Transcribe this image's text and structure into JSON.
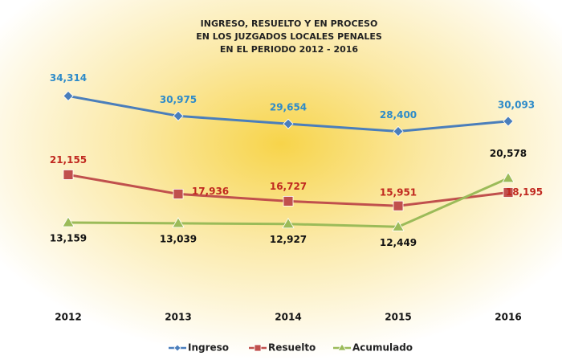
{
  "chart_data": {
    "type": "line",
    "title": [
      "INGRESO, RESUELTO Y EN PROCESO",
      "EN LOS JUZGADOS LOCALES PENALES",
      "EN EL PERIODO 2012 - 2016"
    ],
    "categories": [
      "2012",
      "2013",
      "2014",
      "2015",
      "2016"
    ],
    "ylim": [
      0,
      38000
    ],
    "legend": "bottom",
    "series": [
      {
        "name": "Ingreso",
        "color": "#4a7ebb",
        "label_color": "#2e8bc9",
        "marker": "diamond",
        "values": [
          34314,
          30975,
          29654,
          28400,
          30093
        ],
        "value_labels": [
          "34,314",
          "30,975",
          "29,654",
          "28,400",
          "30,093"
        ]
      },
      {
        "name": "Resuelto",
        "color": "#c0504d",
        "label_color": "#c0281f",
        "marker": "square",
        "values": [
          21155,
          17936,
          16727,
          15951,
          18195
        ],
        "value_labels": [
          "21,155",
          "17,936",
          "16,727",
          "15,951",
          "18,195"
        ]
      },
      {
        "name": "Acumulado",
        "color": "#9bbb59",
        "label_color": "#111111",
        "marker": "triangle",
        "values": [
          13159,
          13039,
          12927,
          12449,
          20578
        ],
        "value_labels": [
          "13,159",
          "13,039",
          "12,927",
          "12,449",
          "20,578"
        ]
      }
    ]
  }
}
